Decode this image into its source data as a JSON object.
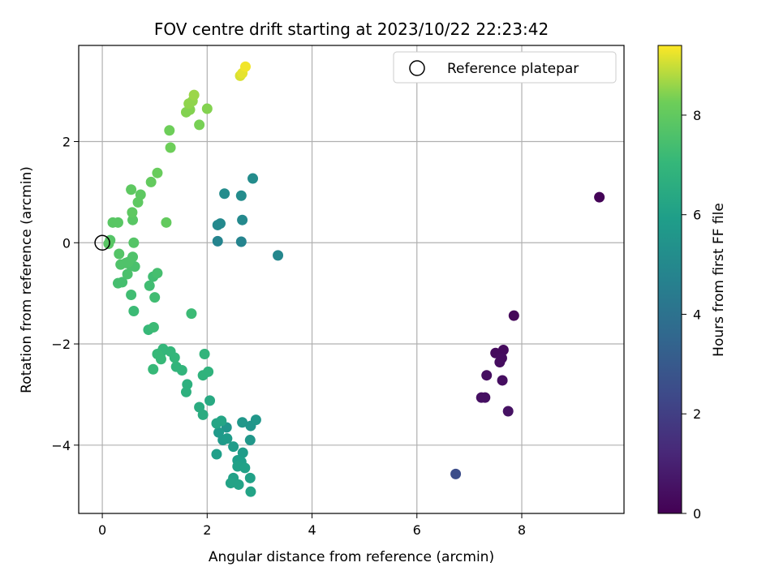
{
  "chart_data": {
    "type": "scatter",
    "title": "FOV centre drift starting at 2023/10/22 22:23:42",
    "xlabel": "Angular distance from reference (arcmin)",
    "ylabel": "Rotation from reference (arcmin)",
    "xlim": [
      -0.45,
      9.95
    ],
    "ylim": [
      -5.35,
      3.9
    ],
    "xticks": [
      0,
      2,
      4,
      6,
      8
    ],
    "yticks": [
      -4,
      -2,
      0,
      2
    ],
    "grid": true,
    "legend": {
      "label": "Reference platepar",
      "placement": "upper right"
    },
    "reference_point": {
      "x": 0,
      "y": 0
    },
    "colorbar": {
      "label": "Hours from first FF file",
      "range": [
        0,
        9.4
      ],
      "ticks": [
        0,
        2,
        4,
        6,
        8
      ],
      "colormap": "viridis"
    },
    "points": [
      {
        "x": 9.48,
        "y": 0.9,
        "c": 0.1
      },
      {
        "x": 7.85,
        "y": -1.44,
        "c": 0.2
      },
      {
        "x": 7.65,
        "y": -2.12,
        "c": 0.3
      },
      {
        "x": 7.5,
        "y": -2.18,
        "c": 0.3
      },
      {
        "x": 7.62,
        "y": -2.28,
        "c": 0.35
      },
      {
        "x": 7.58,
        "y": -2.36,
        "c": 0.35
      },
      {
        "x": 7.33,
        "y": -2.62,
        "c": 0.4
      },
      {
        "x": 7.63,
        "y": -2.72,
        "c": 0.4
      },
      {
        "x": 7.23,
        "y": -3.06,
        "c": 0.45
      },
      {
        "x": 7.3,
        "y": -3.06,
        "c": 0.45
      },
      {
        "x": 7.74,
        "y": -3.33,
        "c": 0.5
      },
      {
        "x": 6.74,
        "y": -4.57,
        "c": 2.5
      },
      {
        "x": 2.37,
        "y": -3.65,
        "c": 5.5
      },
      {
        "x": 2.83,
        "y": -3.62,
        "c": 5.5
      },
      {
        "x": 2.93,
        "y": -3.5,
        "c": 5.6
      },
      {
        "x": 2.67,
        "y": -3.55,
        "c": 5.6
      },
      {
        "x": 2.82,
        "y": -3.9,
        "c": 5.6
      },
      {
        "x": 2.22,
        "y": -3.75,
        "c": 5.7
      },
      {
        "x": 2.3,
        "y": -3.9,
        "c": 5.7
      },
      {
        "x": 2.38,
        "y": -3.87,
        "c": 5.8
      },
      {
        "x": 2.5,
        "y": -4.03,
        "c": 5.8
      },
      {
        "x": 2.68,
        "y": -4.15,
        "c": 5.8
      },
      {
        "x": 2.18,
        "y": -4.18,
        "c": 5.9
      },
      {
        "x": 2.58,
        "y": -4.3,
        "c": 5.9
      },
      {
        "x": 2.65,
        "y": -4.33,
        "c": 5.9
      },
      {
        "x": 2.58,
        "y": -4.42,
        "c": 6.0
      },
      {
        "x": 2.72,
        "y": -4.45,
        "c": 6.0
      },
      {
        "x": 2.5,
        "y": -4.65,
        "c": 6.0
      },
      {
        "x": 2.82,
        "y": -4.65,
        "c": 6.0
      },
      {
        "x": 2.45,
        "y": -4.75,
        "c": 6.1
      },
      {
        "x": 2.6,
        "y": -4.78,
        "c": 6.1
      },
      {
        "x": 2.83,
        "y": -4.92,
        "c": 6.1
      },
      {
        "x": 2.18,
        "y": -3.57,
        "c": 6.2
      },
      {
        "x": 2.27,
        "y": -3.52,
        "c": 6.2
      },
      {
        "x": 2.2,
        "y": 0.03,
        "c": 4.8
      },
      {
        "x": 2.65,
        "y": 0.02,
        "c": 4.8
      },
      {
        "x": 3.35,
        "y": -0.25,
        "c": 4.9
      },
      {
        "x": 2.2,
        "y": 0.35,
        "c": 5.0
      },
      {
        "x": 2.25,
        "y": 0.38,
        "c": 5.0
      },
      {
        "x": 2.67,
        "y": 0.45,
        "c": 5.0
      },
      {
        "x": 2.33,
        "y": 0.97,
        "c": 5.1
      },
      {
        "x": 2.65,
        "y": 0.93,
        "c": 5.1
      },
      {
        "x": 2.87,
        "y": 1.27,
        "c": 5.1
      },
      {
        "x": 2.05,
        "y": -3.12,
        "c": 6.4
      },
      {
        "x": 1.85,
        "y": -3.25,
        "c": 6.5
      },
      {
        "x": 1.92,
        "y": -3.4,
        "c": 6.5
      },
      {
        "x": 1.62,
        "y": -2.8,
        "c": 6.7
      },
      {
        "x": 1.6,
        "y": -2.95,
        "c": 6.7
      },
      {
        "x": 1.92,
        "y": -2.62,
        "c": 6.8
      },
      {
        "x": 2.02,
        "y": -2.55,
        "c": 6.8
      },
      {
        "x": 1.95,
        "y": -2.2,
        "c": 6.9
      },
      {
        "x": 1.52,
        "y": -2.52,
        "c": 6.9
      },
      {
        "x": 1.41,
        "y": -2.45,
        "c": 6.9
      },
      {
        "x": 1.38,
        "y": -2.27,
        "c": 7.0
      },
      {
        "x": 1.3,
        "y": -2.15,
        "c": 7.0
      },
      {
        "x": 1.16,
        "y": -2.1,
        "c": 7.0
      },
      {
        "x": 1.12,
        "y": -2.17,
        "c": 7.0
      },
      {
        "x": 1.05,
        "y": -2.2,
        "c": 7.1
      },
      {
        "x": 1.12,
        "y": -2.3,
        "c": 7.1
      },
      {
        "x": 0.97,
        "y": -2.5,
        "c": 7.1
      },
      {
        "x": 0.88,
        "y": -1.72,
        "c": 7.1
      },
      {
        "x": 0.98,
        "y": -1.67,
        "c": 7.2
      },
      {
        "x": 1.7,
        "y": -1.4,
        "c": 7.2
      },
      {
        "x": 0.6,
        "y": -1.35,
        "c": 7.2
      },
      {
        "x": 0.55,
        "y": -1.03,
        "c": 7.3
      },
      {
        "x": 1.0,
        "y": -1.08,
        "c": 7.3
      },
      {
        "x": 0.9,
        "y": -0.85,
        "c": 7.3
      },
      {
        "x": 0.97,
        "y": -0.67,
        "c": 7.3
      },
      {
        "x": 1.05,
        "y": -0.6,
        "c": 7.4
      },
      {
        "x": 0.3,
        "y": -0.8,
        "c": 7.4
      },
      {
        "x": 0.38,
        "y": -0.78,
        "c": 7.4
      },
      {
        "x": 0.48,
        "y": -0.62,
        "c": 7.5
      },
      {
        "x": 0.62,
        "y": -0.47,
        "c": 7.5
      },
      {
        "x": 0.55,
        "y": -0.45,
        "c": 7.5
      },
      {
        "x": 0.35,
        "y": -0.43,
        "c": 7.6
      },
      {
        "x": 0.45,
        "y": -0.4,
        "c": 7.6
      },
      {
        "x": 0.5,
        "y": -0.38,
        "c": 7.6
      },
      {
        "x": 0.58,
        "y": -0.28,
        "c": 7.6
      },
      {
        "x": 0.32,
        "y": -0.22,
        "c": 7.7
      },
      {
        "x": 0.6,
        "y": 0.0,
        "c": 7.7
      },
      {
        "x": 0.15,
        "y": 0.05,
        "c": 7.7
      },
      {
        "x": 0.12,
        "y": -0.02,
        "c": 7.8
      },
      {
        "x": 0.2,
        "y": 0.4,
        "c": 7.8
      },
      {
        "x": 0.3,
        "y": 0.4,
        "c": 7.8
      },
      {
        "x": 0.58,
        "y": 0.45,
        "c": 7.8
      },
      {
        "x": 0.57,
        "y": 0.6,
        "c": 7.9
      },
      {
        "x": 0.68,
        "y": 0.8,
        "c": 7.9
      },
      {
        "x": 0.73,
        "y": 0.95,
        "c": 7.9
      },
      {
        "x": 0.55,
        "y": 1.05,
        "c": 7.9
      },
      {
        "x": 1.22,
        "y": 0.4,
        "c": 8.0
      },
      {
        "x": 0.93,
        "y": 1.2,
        "c": 8.0
      },
      {
        "x": 1.05,
        "y": 1.38,
        "c": 8.1
      },
      {
        "x": 1.3,
        "y": 1.88,
        "c": 8.2
      },
      {
        "x": 1.28,
        "y": 2.22,
        "c": 8.2
      },
      {
        "x": 1.85,
        "y": 2.33,
        "c": 8.3
      },
      {
        "x": 1.6,
        "y": 2.58,
        "c": 8.4
      },
      {
        "x": 1.67,
        "y": 2.63,
        "c": 8.4
      },
      {
        "x": 2.0,
        "y": 2.65,
        "c": 8.4
      },
      {
        "x": 1.65,
        "y": 2.75,
        "c": 8.5
      },
      {
        "x": 1.72,
        "y": 2.8,
        "c": 8.5
      },
      {
        "x": 1.75,
        "y": 2.92,
        "c": 8.6
      },
      {
        "x": 2.63,
        "y": 3.3,
        "c": 9.1
      },
      {
        "x": 2.67,
        "y": 3.35,
        "c": 9.2
      },
      {
        "x": 2.73,
        "y": 3.48,
        "c": 9.3
      }
    ]
  }
}
